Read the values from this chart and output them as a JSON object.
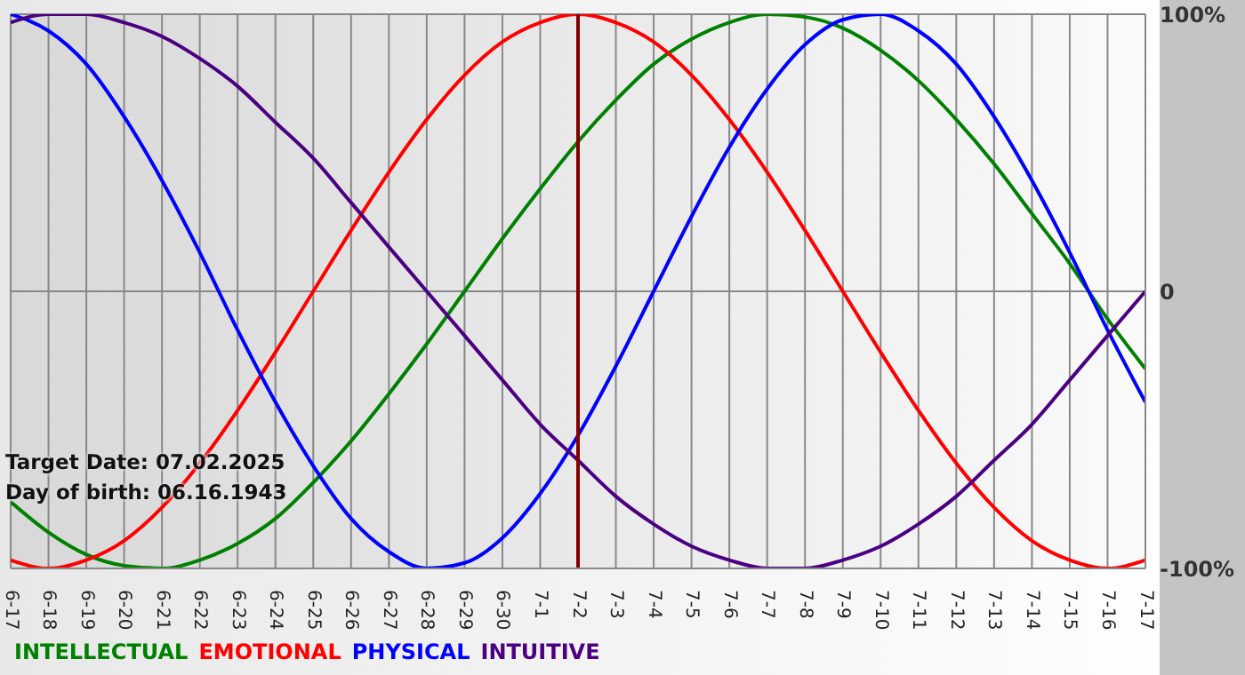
{
  "chart_data": {
    "type": "line",
    "categories": [
      "6-17",
      "6-18",
      "6-19",
      "6-20",
      "6-21",
      "6-22",
      "6-23",
      "6-24",
      "6-25",
      "6-26",
      "6-27",
      "6-28",
      "6-29",
      "6-30",
      "7-1",
      "7-2",
      "7-3",
      "7-4",
      "7-5",
      "7-6",
      "7-7",
      "7-8",
      "7-9",
      "7-10",
      "7-11",
      "7-12",
      "7-13",
      "7-14",
      "7-15",
      "7-16",
      "7-17"
    ],
    "series": [
      {
        "name": "INTELLECTUAL",
        "color": "#008000",
        "values": [
          -76,
          -87,
          -95,
          -99,
          -100,
          -97,
          -91,
          -82,
          -69,
          -54,
          -37,
          -19,
          0,
          19,
          37,
          54,
          69,
          82,
          91,
          97,
          100,
          99,
          95,
          87,
          76,
          62,
          46,
          28,
          10,
          -10,
          -28
        ]
      },
      {
        "name": "EMOTIONAL",
        "color": "#ff0000",
        "values": [
          -97,
          -100,
          -97,
          -90,
          -78,
          -62,
          -43,
          -22,
          0,
          22,
          43,
          62,
          78,
          90,
          97,
          100,
          97,
          90,
          78,
          62,
          43,
          22,
          0,
          -22,
          -43,
          -62,
          -78,
          -90,
          -97,
          -100,
          -97
        ]
      },
      {
        "name": "PHYSICAL",
        "color": "#0000ff",
        "values": [
          100,
          94,
          82,
          63,
          40,
          14,
          -14,
          -40,
          -63,
          -82,
          -94,
          -100,
          -98,
          -89,
          -73,
          -52,
          -27,
          0,
          27,
          52,
          73,
          89,
          98,
          100,
          94,
          82,
          63,
          40,
          14,
          -14,
          -40
        ]
      },
      {
        "name": "INTUITIVE",
        "color": "#4b0082",
        "values": [
          97,
          100,
          100,
          97,
          92,
          84,
          74,
          61,
          48,
          32,
          16,
          0,
          -16,
          -32,
          -48,
          -61,
          -74,
          -84,
          -92,
          -97,
          -100,
          -100,
          -97,
          -92,
          -84,
          -74,
          -61,
          -48,
          -32,
          -16,
          0
        ]
      }
    ],
    "ylim": [
      -100,
      100
    ],
    "yticks": [
      {
        "value": -100,
        "label": "-100%"
      },
      0,
      {
        "value": 100,
        "label": "100%"
      }
    ],
    "ref_lines": [
      {
        "axis": "x",
        "value": "7-2",
        "color": "#800000"
      }
    ],
    "annotations": [
      "Target Date: 07.02.2025",
      "Day of birth: 06.16.1943"
    ],
    "grid": true,
    "legend": "bottom left",
    "marker": "none",
    "line_style": "solid"
  }
}
